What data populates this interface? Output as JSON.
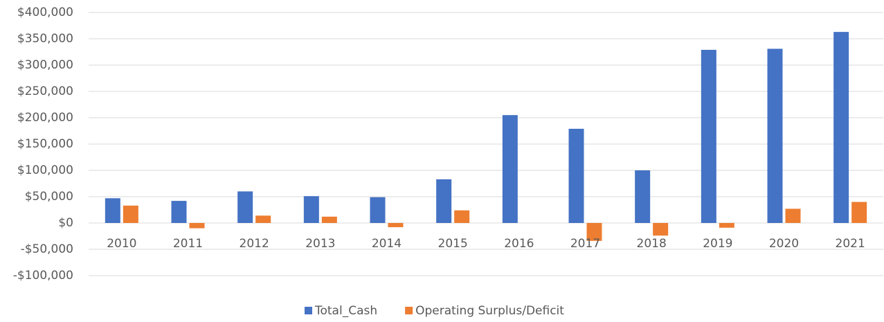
{
  "chart_data": {
    "type": "bar",
    "categories": [
      "2010",
      "2011",
      "2012",
      "2013",
      "2014",
      "2015",
      "2016",
      "2017",
      "2018",
      "2019",
      "2020",
      "2021"
    ],
    "series": [
      {
        "name": "Total_Cash",
        "color": "#4472c4",
        "values": [
          47000,
          42000,
          60000,
          51000,
          49000,
          83000,
          205000,
          179000,
          100000,
          329000,
          331000,
          363000
        ]
      },
      {
        "name": "Operating Surplus/Deficit",
        "color": "#ed7d31",
        "values": [
          33000,
          -10000,
          14000,
          12000,
          -8000,
          24000,
          0,
          -34000,
          -24000,
          -9000,
          27000,
          40000
        ]
      }
    ],
    "ylim": [
      -100000,
      400000
    ],
    "yticks": [
      {
        "value": -100000,
        "label": "-$100,000"
      },
      {
        "value": -50000,
        "label": "-$50,000"
      },
      {
        "value": 0,
        "label": "$0"
      },
      {
        "value": 50000,
        "label": "$50,000"
      },
      {
        "value": 100000,
        "label": "$100,000"
      },
      {
        "value": 150000,
        "label": "$150,000"
      },
      {
        "value": 200000,
        "label": "$200,000"
      },
      {
        "value": 250000,
        "label": "$250,000"
      },
      {
        "value": 300000,
        "label": "$300,000"
      },
      {
        "value": 350000,
        "label": "$350,000"
      },
      {
        "value": 400000,
        "label": "$400,000"
      }
    ],
    "grid": true,
    "legend": "bottom"
  }
}
